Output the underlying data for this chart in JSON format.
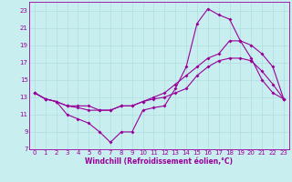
{
  "xlabel": "Windchill (Refroidissement éolien,°C)",
  "background_color": "#c8eef0",
  "grid_color": "#b0dde0",
  "line_color": "#990099",
  "xlim": [
    -0.5,
    23.5
  ],
  "ylim": [
    7,
    24
  ],
  "xticks": [
    0,
    1,
    2,
    3,
    4,
    5,
    6,
    7,
    8,
    9,
    10,
    11,
    12,
    13,
    14,
    15,
    16,
    17,
    18,
    19,
    20,
    21,
    22,
    23
  ],
  "yticks": [
    7,
    9,
    11,
    13,
    15,
    17,
    19,
    21,
    23
  ],
  "line1_x": [
    0,
    1,
    2,
    3,
    4,
    5,
    6,
    7,
    8,
    9,
    10,
    11,
    12,
    13,
    14,
    15,
    16,
    17,
    18,
    19,
    20,
    21,
    22,
    23
  ],
  "line1_y": [
    13.5,
    12.8,
    12.5,
    11.0,
    10.5,
    10.0,
    9.0,
    7.8,
    9.0,
    9.0,
    11.5,
    11.8,
    12.0,
    14.0,
    16.5,
    21.5,
    23.2,
    22.5,
    22.0,
    19.5,
    17.5,
    15.0,
    13.5,
    12.8
  ],
  "line2_x": [
    0,
    1,
    2,
    3,
    4,
    5,
    6,
    7,
    8,
    9,
    10,
    11,
    12,
    13,
    14,
    15,
    16,
    17,
    18,
    19,
    20,
    21,
    22,
    23
  ],
  "line2_y": [
    13.5,
    12.8,
    12.5,
    12.0,
    12.0,
    12.0,
    11.5,
    11.5,
    12.0,
    12.0,
    12.5,
    13.0,
    13.5,
    14.5,
    15.5,
    16.5,
    17.5,
    18.0,
    19.5,
    19.5,
    19.0,
    18.0,
    16.5,
    12.8
  ],
  "line3_x": [
    0,
    1,
    2,
    3,
    4,
    5,
    6,
    7,
    8,
    9,
    10,
    11,
    12,
    13,
    14,
    15,
    16,
    17,
    18,
    19,
    20,
    21,
    22,
    23
  ],
  "line3_y": [
    13.5,
    12.8,
    12.5,
    12.0,
    11.8,
    11.5,
    11.5,
    11.5,
    12.0,
    12.0,
    12.5,
    12.8,
    13.0,
    13.5,
    14.0,
    15.5,
    16.5,
    17.2,
    17.5,
    17.5,
    17.2,
    16.0,
    14.5,
    12.8
  ],
  "tick_fontsize": 5,
  "xlabel_fontsize": 5.5,
  "marker_size": 2.0,
  "line_width": 0.8
}
